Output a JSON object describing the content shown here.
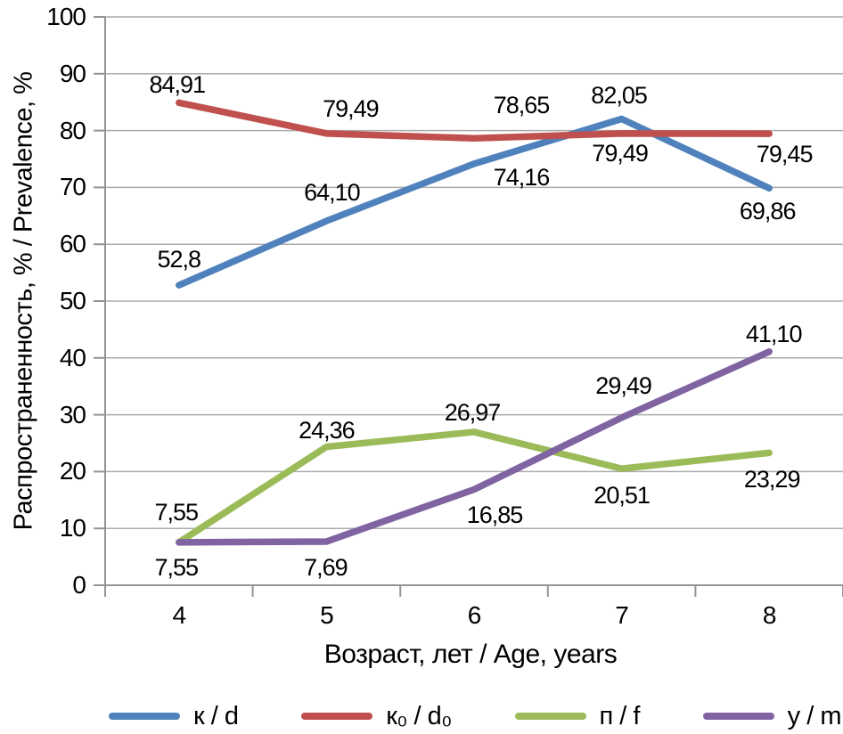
{
  "chart_data": {
    "type": "line",
    "title": "",
    "xlabel": "Возраст, лет / Age, years",
    "ylabel": "Распространенность, % / Prevalence, %",
    "x": [
      "4",
      "5",
      "6",
      "7",
      "8"
    ],
    "ylim": [
      0,
      100
    ],
    "yticks": [
      0,
      10,
      20,
      30,
      40,
      50,
      60,
      70,
      80,
      90,
      100
    ],
    "grid": true,
    "legend_position": "bottom",
    "colors": {
      "gridline": "#ABABAB",
      "axis": "#949494",
      "label_text": "#000000",
      "background": "#FFFFFF"
    },
    "series": [
      {
        "name": "к / d",
        "color": "#4F81BD",
        "values": [
          52.8,
          64.1,
          74.16,
          82.05,
          69.86
        ],
        "labels": [
          "52,8",
          "64,10",
          "74,16",
          "82,05",
          "69,86"
        ],
        "label_offsets": [
          [
            0,
            -29
          ],
          [
            6,
            -32
          ],
          [
            53,
            15
          ],
          [
            -3,
            -27
          ],
          [
            -2,
            26
          ]
        ]
      },
      {
        "name": "к₀ / d₀",
        "color": "#C0504D",
        "values": [
          84.91,
          79.49,
          78.65,
          79.49,
          79.45
        ],
        "labels": [
          "84,91",
          "79,49",
          "78,65",
          "79,49",
          "79,45"
        ],
        "label_offsets": [
          [
            -2,
            -20
          ],
          [
            27,
            -28
          ],
          [
            53,
            -37
          ],
          [
            -2,
            22
          ],
          [
            17,
            23
          ]
        ]
      },
      {
        "name": "п / f",
        "color": "#9BBB59",
        "values": [
          7.55,
          24.36,
          26.97,
          20.51,
          23.29
        ],
        "labels": [
          "7,55",
          "24,36",
          "26,97",
          "20,51",
          "23,29"
        ],
        "label_offsets": [
          [
            -3,
            -34
          ],
          [
            0,
            -19
          ],
          [
            -2,
            -22
          ],
          [
            0,
            30
          ],
          [
            3,
            30
          ]
        ]
      },
      {
        "name": "у / m",
        "color": "#8064A2",
        "values": [
          7.55,
          7.69,
          16.85,
          29.49,
          41.1
        ],
        "labels": [
          "7,55",
          "7,69",
          "16,85",
          "29,49",
          "41,10"
        ],
        "label_offsets": [
          [
            -3,
            28
          ],
          [
            -1,
            29
          ],
          [
            23,
            29
          ],
          [
            2,
            -36
          ],
          [
            5,
            -20
          ]
        ]
      }
    ]
  }
}
